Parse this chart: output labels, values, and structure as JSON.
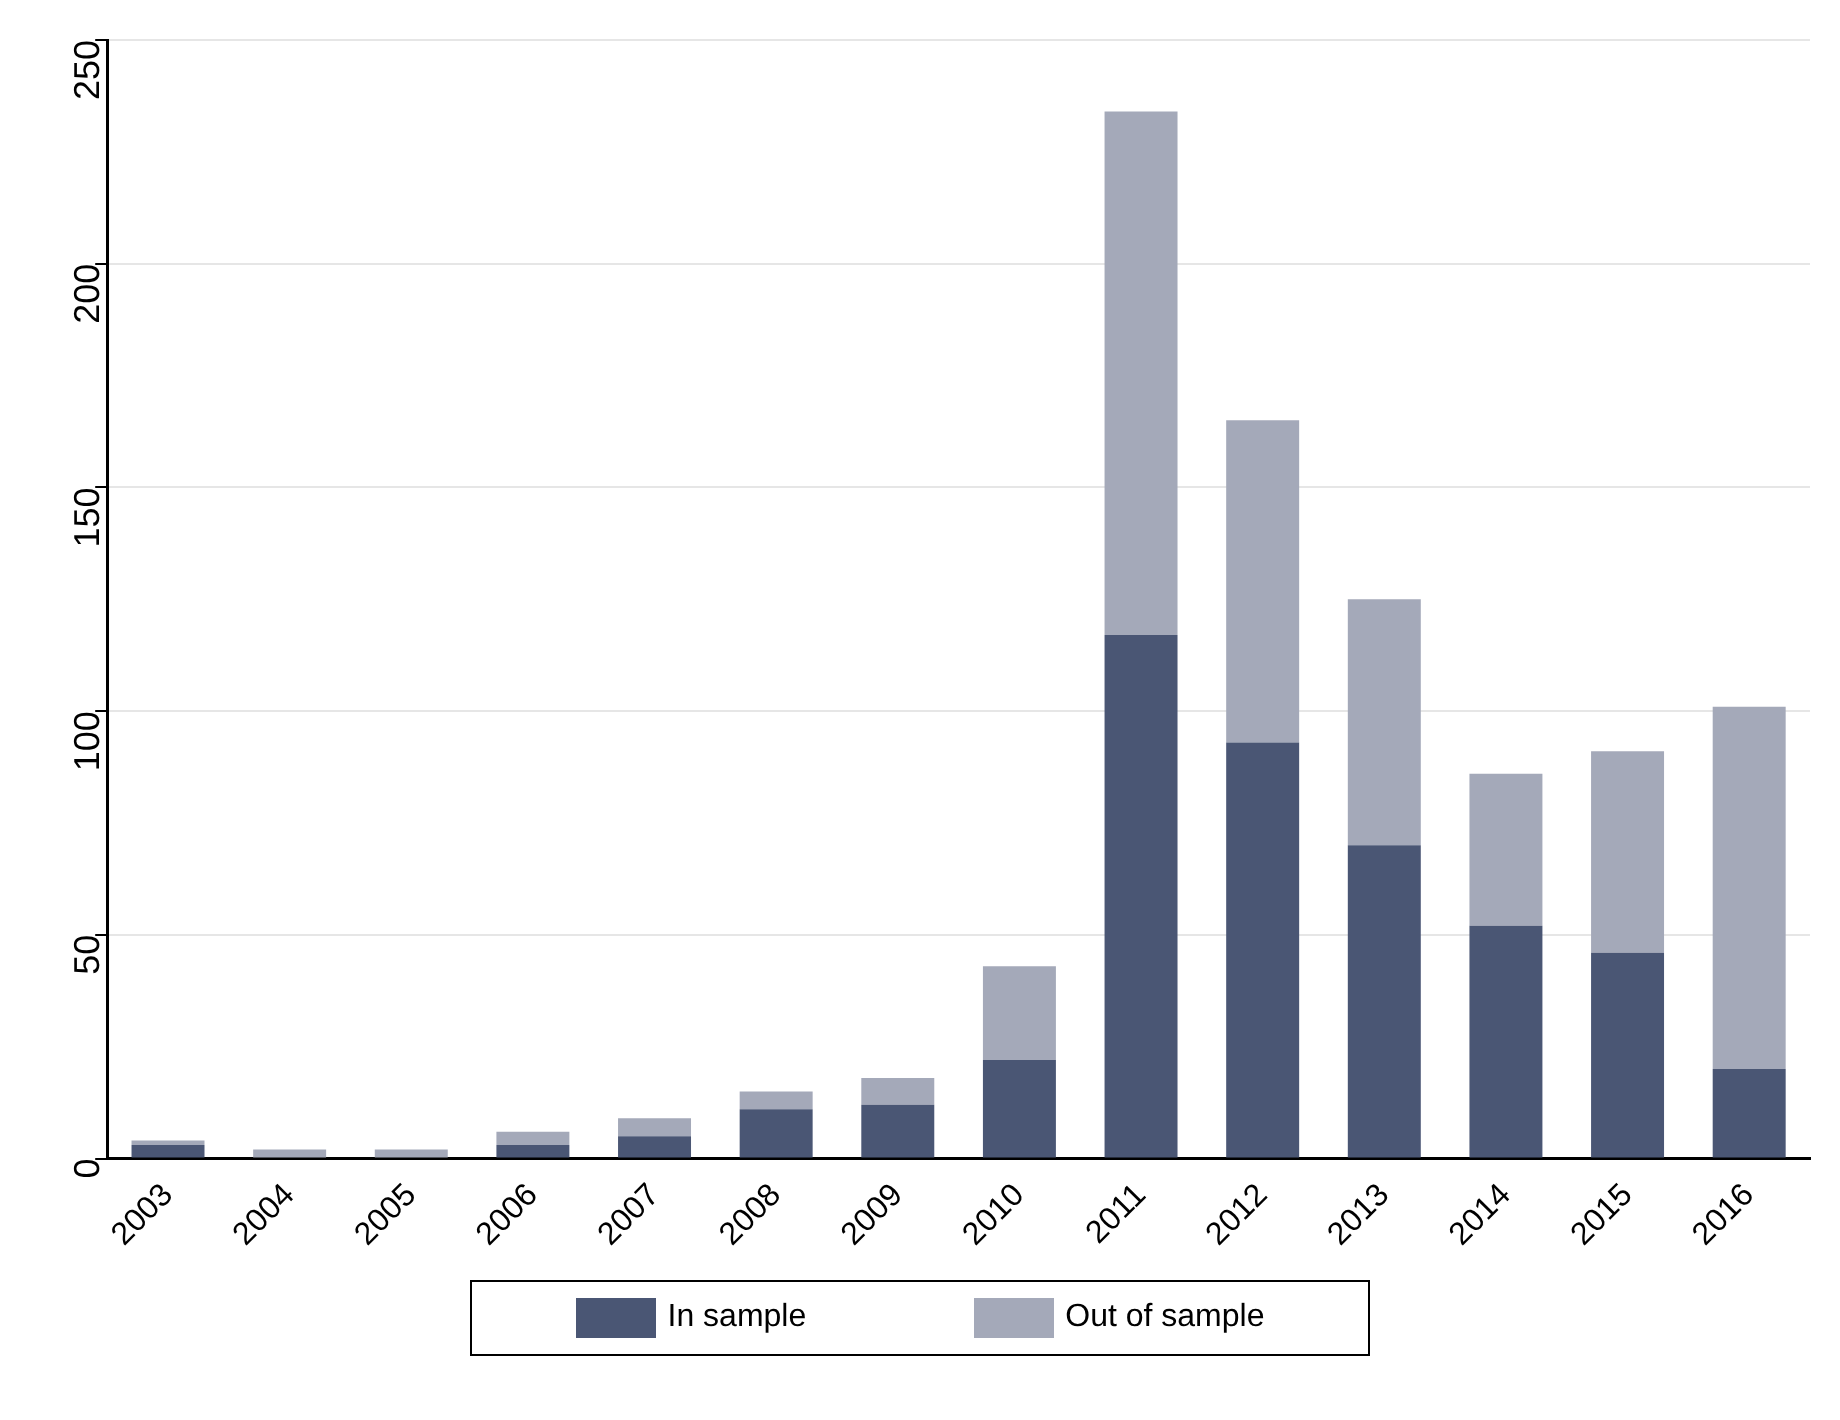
{
  "chart_data": {
    "type": "bar",
    "stacked": true,
    "categories": [
      "2003",
      "2004",
      "2005",
      "2006",
      "2007",
      "2008",
      "2009",
      "2010",
      "2011",
      "2012",
      "2013",
      "2014",
      "2015",
      "2016"
    ],
    "series": [
      {
        "name": "In sample",
        "color": "#4a5674",
        "values": [
          3,
          0,
          0,
          3,
          5,
          11,
          12,
          22,
          117,
          93,
          70,
          52,
          46,
          20
        ]
      },
      {
        "name": "Out of sample",
        "color": "#a4a9b9",
        "values": [
          1,
          2,
          2,
          3,
          4,
          4,
          6,
          21,
          117,
          72,
          55,
          34,
          45,
          81
        ]
      }
    ],
    "ylim": [
      0,
      250
    ],
    "yticks": [
      0,
      50,
      100,
      150,
      200,
      250
    ],
    "grid": "y",
    "legend": "bottom"
  }
}
